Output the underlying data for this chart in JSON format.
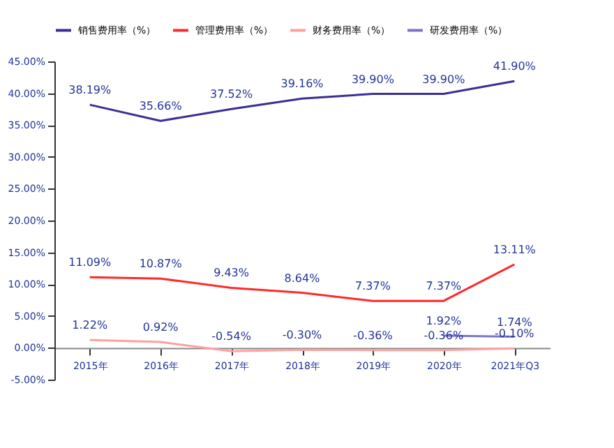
{
  "chart_data": {
    "type": "line",
    "categories": [
      "2015年",
      "2016年",
      "2017年",
      "2018年",
      "2019年",
      "2020年",
      "2021年Q3"
    ],
    "series": [
      {
        "name": "销售费用率（%）",
        "color": "#3a2e96",
        "values": [
          38.19,
          35.66,
          37.52,
          39.16,
          39.9,
          39.9,
          41.9
        ],
        "value_labels": [
          "38.19%",
          "35.66%",
          "37.52%",
          "39.16%",
          "39.90%",
          "39.90%",
          "41.90%"
        ]
      },
      {
        "name": "管理费用率（%）",
        "color": "#ff2a2a",
        "values": [
          11.09,
          10.87,
          9.43,
          8.64,
          7.37,
          7.37,
          13.11
        ],
        "value_labels": [
          "11.09%",
          "10.87%",
          "9.43%",
          "8.64%",
          "7.37%",
          "7.37%",
          "13.11%"
        ]
      },
      {
        "name": "财务费用率（%）",
        "color": "#ffa0a0",
        "values": [
          1.22,
          0.92,
          -0.54,
          -0.3,
          -0.36,
          -0.36,
          -0.1
        ],
        "value_labels": [
          "1.22%",
          "0.92%",
          "-0.54%",
          "-0.30%",
          "-0.36%",
          "-0.36%",
          "-0.10%"
        ]
      },
      {
        "name": "研发费用率（%）",
        "color": "#7b74c8",
        "values": [
          null,
          null,
          null,
          null,
          null,
          1.92,
          1.74
        ],
        "value_labels": [
          null,
          null,
          null,
          null,
          null,
          "1.92%",
          "1.74%"
        ]
      }
    ],
    "ylim": [
      -5,
      45
    ],
    "yticks": [
      {
        "value": -5,
        "label": "-5.00%"
      },
      {
        "value": 0,
        "label": "0.00%"
      },
      {
        "value": 5,
        "label": "5.00%"
      },
      {
        "value": 10,
        "label": "10.00%"
      },
      {
        "value": 15,
        "label": "15.00%"
      },
      {
        "value": 20,
        "label": "20.00%"
      },
      {
        "value": 25,
        "label": "25.00%"
      },
      {
        "value": 30,
        "label": "30.00%"
      },
      {
        "value": 35,
        "label": "35.00%"
      },
      {
        "value": 40,
        "label": "40.00%"
      },
      {
        "value": 45,
        "label": "45.00%"
      }
    ],
    "legend": "top",
    "grid": false,
    "marker": "none",
    "line_style": "solid"
  }
}
